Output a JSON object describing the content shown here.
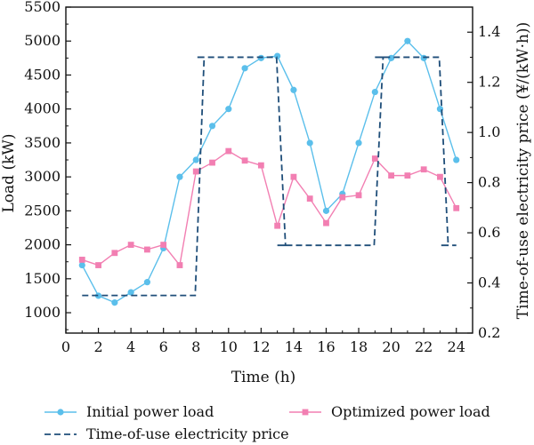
{
  "chart_data": {
    "type": "line",
    "x": [
      1,
      2,
      3,
      4,
      5,
      6,
      7,
      8,
      9,
      10,
      11,
      12,
      13,
      14,
      15,
      16,
      17,
      18,
      19,
      20,
      21,
      22,
      23,
      24
    ],
    "xlabel": "Time (h)",
    "ylabel": "Load (kW)",
    "y2label": "Time-of-use electricity price (¥/(kW·h))",
    "xlim": [
      0,
      25
    ],
    "ylim": [
      700,
      5500
    ],
    "y2lim": [
      0.2,
      1.5
    ],
    "xticks": [
      0,
      2,
      4,
      6,
      8,
      10,
      12,
      14,
      16,
      18,
      20,
      22,
      24
    ],
    "yticks": [
      1000,
      1500,
      2000,
      2500,
      3000,
      3500,
      4000,
      4500,
      5000,
      5500
    ],
    "y2ticks": [
      "0.2",
      "0.4",
      "0.6",
      "0.8",
      "1.0",
      "1.2",
      "1.4"
    ],
    "grid": false,
    "legend_position": "bottom",
    "series": [
      {
        "name": "Initial power load",
        "axis": "left",
        "color": "#5bbfeb",
        "marker": "circle",
        "values": [
          1700,
          1250,
          1150,
          1300,
          1450,
          1950,
          3000,
          3250,
          3750,
          4000,
          4600,
          4750,
          4780,
          4280,
          3500,
          2500,
          2750,
          3500,
          4250,
          4750,
          5000,
          4750,
          4000,
          3250
        ]
      },
      {
        "name": "Optimized power load",
        "axis": "left",
        "color": "#f27fb2",
        "marker": "square",
        "values": [
          1780,
          1700,
          1880,
          2000,
          1930,
          2000,
          1700,
          3080,
          3210,
          3380,
          3240,
          3170,
          2280,
          3000,
          2680,
          2320,
          2700,
          2730,
          3270,
          3020,
          3020,
          3110,
          3000,
          2540
        ]
      },
      {
        "name": "Time-of-use electricity price",
        "axis": "right",
        "color": "#1f4e79",
        "dash": true,
        "values": [
          0.35,
          0.35,
          0.35,
          0.35,
          0.35,
          0.35,
          0.35,
          1.3,
          1.3,
          1.3,
          1.3,
          1.3,
          0.55,
          0.55,
          0.55,
          0.55,
          0.55,
          0.55,
          1.3,
          1.3,
          1.3,
          1.3,
          0.55,
          0.55
        ]
      }
    ]
  }
}
